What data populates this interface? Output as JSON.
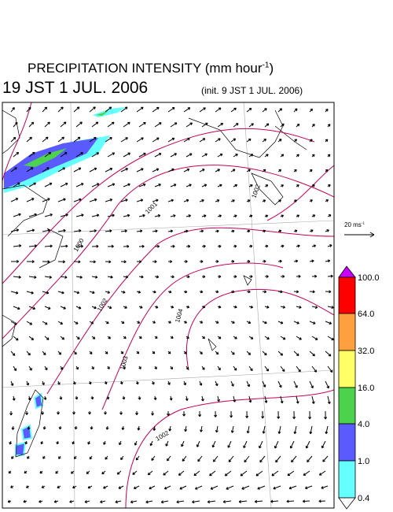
{
  "header": {
    "title": {
      "main": "PRECIPITATION INTENSITY (mm hour",
      "exponent": "-1",
      "close": ")"
    },
    "valid_time": "19 JST 1 JUL. 2006",
    "init_time": "(init. 9 JST 1 JUL. 2006)"
  },
  "wind_scale": {
    "text": "20 ms",
    "exponent": "-1"
  },
  "colorbar": {
    "labels": [
      "100.0",
      "64.0",
      "32.0",
      "16.0",
      "4.0",
      "1.0",
      "0.4"
    ]
  },
  "isobars": {
    "labels": [
      "1000",
      "1001",
      "1002",
      "1002",
      "1003",
      "1004",
      "1002"
    ]
  }
}
